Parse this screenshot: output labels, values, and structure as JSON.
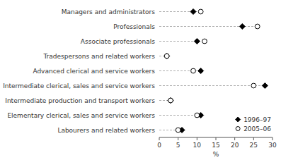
{
  "chart_data": {
    "type": "dot",
    "orientation": "horizontal",
    "categories": [
      "Managers and administrators",
      "Professionals",
      "Associate professionals",
      "Tradespersons and related workers",
      "Advanced clerical and service workers",
      "Intermediate clerical, sales and service workers",
      "Intermediate production and transport workers",
      "Elementary clerical, sales and service workers",
      "Labourers and related workers"
    ],
    "series": [
      {
        "name": "1996–97",
        "color": "#000000",
        "marker": "diamond",
        "values": [
          9.0,
          22.0,
          10.0,
          2.0,
          11.0,
          28.0,
          3.0,
          11.0,
          6.0
        ]
      },
      {
        "name": "2005–06",
        "color": "#ffffff",
        "marker": "circle",
        "values": [
          11.0,
          26.0,
          12.0,
          2.0,
          9.0,
          25.0,
          3.0,
          10.0,
          5.0
        ]
      }
    ],
    "x_label": "%",
    "xlim": [
      0,
      30
    ],
    "xticks": [
      0,
      5,
      10,
      15,
      20,
      25,
      30
    ],
    "grid": false,
    "legend": "lower right"
  }
}
